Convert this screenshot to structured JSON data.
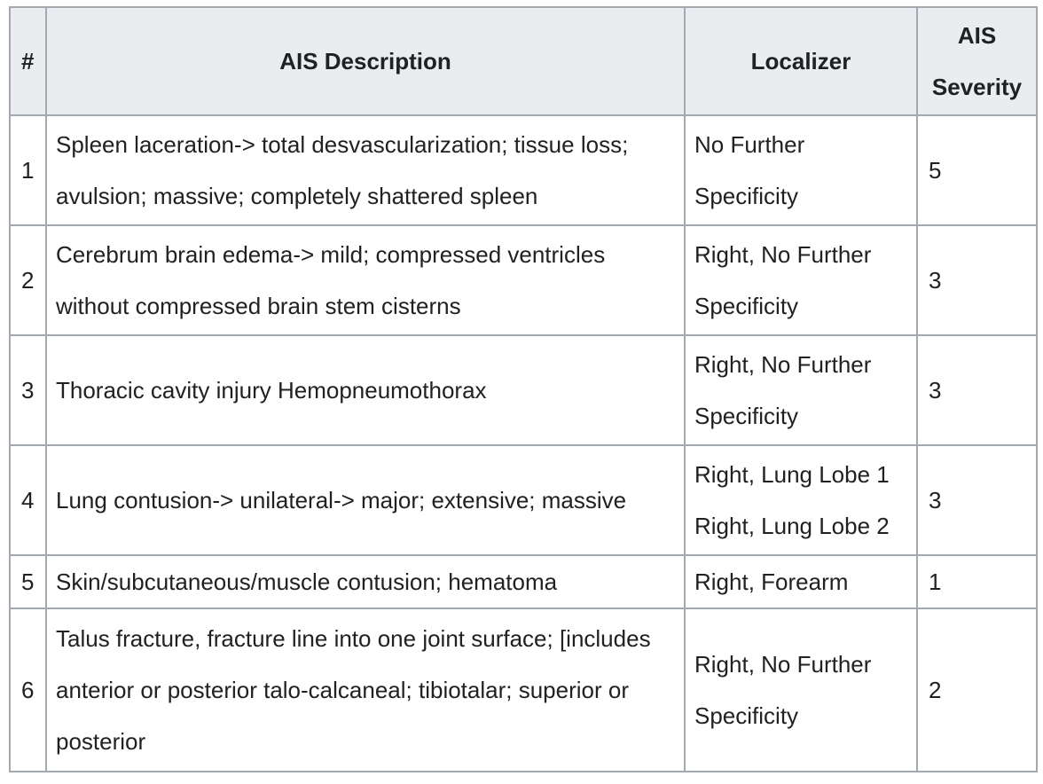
{
  "table": {
    "headers": {
      "num": "#",
      "description": "AIS Description",
      "localizer": "Localizer",
      "severity": "AIS Severity"
    },
    "rows": [
      {
        "num": "1",
        "description": "Spleen laceration-> total desvascularization; tissue loss; avulsion; massive; completely shattered spleen",
        "localizer": [
          "No Further Specificity"
        ],
        "severity": "5"
      },
      {
        "num": "2",
        "description": "Cerebrum brain edema-> mild; compressed ventricles without compressed brain stem cisterns",
        "localizer": [
          "Right, No Further Specificity"
        ],
        "severity": "3"
      },
      {
        "num": "3",
        "description": "Thoracic cavity injury Hemopneumothorax",
        "localizer": [
          "Right, No Further Specificity"
        ],
        "severity": "3"
      },
      {
        "num": "4",
        "description": "Lung contusion-> unilateral-> major; extensive; massive",
        "localizer": [
          "Right, Lung Lobe 1",
          "Right, Lung Lobe 2"
        ],
        "severity": "3"
      },
      {
        "num": "5",
        "description": "Skin/subcutaneous/muscle contusion; hematoma",
        "localizer": [
          "Right, Forearm"
        ],
        "severity": "1"
      },
      {
        "num": "6",
        "description": "Talus fracture, fracture line into one joint surface; [includes anterior or posterior talo-calcaneal; tibiotalar; superior or posterior",
        "localizer": [
          "Right, No Further Specificity"
        ],
        "severity": "2"
      }
    ]
  }
}
